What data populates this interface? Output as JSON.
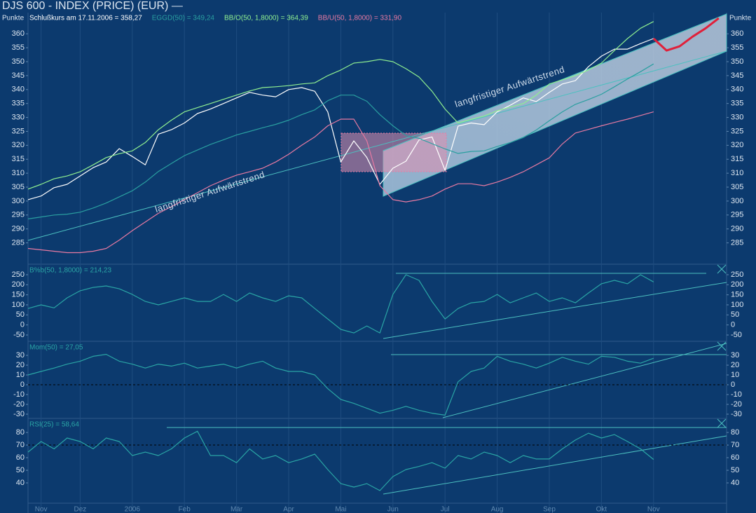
{
  "chart_data": [
    {
      "type": "line",
      "title": "DJS 600 - INDEX (PRICE) (EUR) —",
      "y_label": "Punkte",
      "ylim": [
        277.6,
        367.6
      ],
      "yticks": [
        285,
        290,
        295,
        300,
        305,
        310,
        315,
        320,
        325,
        330,
        335,
        340,
        345,
        350,
        355,
        360
      ],
      "annotations": [
        "langfristiger Aufwärtstrend",
        "langfristiger Aufwärtstrend"
      ],
      "series": [
        {
          "name": "Schlußkurs am 17.11.2006 = 358,27",
          "color": "#ffffff",
          "values": [
            300.5,
            301.8,
            304.8,
            306,
            309,
            312,
            314,
            318.8,
            316,
            313,
            324,
            325.6,
            328,
            331.4,
            333,
            335,
            337,
            339,
            338,
            337.4,
            340,
            340.7,
            339.4,
            332,
            314,
            321.6,
            315.6,
            306,
            311.8,
            314.3,
            321.9,
            323,
            311,
            326.9,
            328,
            327.4,
            332,
            334.4,
            337,
            335.7,
            339,
            342,
            343.2,
            348.2,
            352,
            354.5,
            354.5,
            356.5,
            358.3,
            null,
            null,
            null,
            null,
            null
          ]
        },
        {
          "name": "EGGD(50) = 349,24",
          "color": "#2a9fa0",
          "values": [
            293.6,
            294.3,
            295,
            295.3,
            296,
            297.5,
            299.3,
            301.5,
            303.7,
            306.8,
            310.6,
            313.5,
            316.3,
            318.3,
            320.3,
            322,
            323.7,
            325,
            326.3,
            327.5,
            329,
            331,
            332.7,
            336,
            338,
            338,
            335.8,
            331,
            327,
            323.5,
            322.5,
            320.6,
            318.7,
            317.1,
            317.8,
            318,
            319.6,
            321,
            322.8,
            325.5,
            328.8,
            332,
            334.7,
            336.4,
            338.3,
            341,
            343.8,
            346.4,
            349.2,
            null,
            null,
            null,
            null,
            null
          ]
        },
        {
          "name": "BB/O(50, 1,8000) = 364,39",
          "color": "#90f090",
          "values": [
            304.3,
            306,
            308,
            309,
            310.5,
            313,
            315.6,
            317,
            318,
            321,
            325.6,
            329,
            332,
            333.5,
            335,
            336.5,
            338,
            339.5,
            340.7,
            341,
            341.4,
            342,
            342.4,
            345,
            347,
            349.5,
            350,
            350.8,
            350,
            347.5,
            344.5,
            339.4,
            333,
            328,
            329.3,
            330.5,
            332.4,
            333.7,
            335,
            338,
            342,
            343.5,
            345,
            347,
            349.5,
            354,
            358.3,
            362,
            364.4,
            null,
            null,
            null,
            null,
            null
          ]
        },
        {
          "name": "BB/U(50, 1,8000) = 331,90",
          "color": "#e87aa2",
          "values": [
            283,
            282.5,
            282,
            281.5,
            281.5,
            282,
            283,
            286,
            289.4,
            292.5,
            295.6,
            298,
            300.5,
            303,
            305.5,
            307.5,
            309.3,
            310.5,
            311.8,
            314,
            316.8,
            320,
            323,
            327,
            329.4,
            329.4,
            321.6,
            305.5,
            300.5,
            299.7,
            300.5,
            301.8,
            304.3,
            306.2,
            306.2,
            305.5,
            306.8,
            308.5,
            310.5,
            313,
            315.5,
            320.5,
            324.4,
            325.7,
            327,
            328.2,
            329.4,
            330.7,
            332,
            null,
            null,
            null,
            null,
            null
          ]
        },
        {
          "color": "#e0203a",
          "values": [
            null,
            null,
            null,
            null,
            null,
            null,
            null,
            null,
            null,
            null,
            null,
            null,
            null,
            null,
            null,
            null,
            null,
            null,
            null,
            null,
            null,
            null,
            null,
            null,
            null,
            null,
            null,
            null,
            null,
            null,
            null,
            null,
            null,
            null,
            null,
            null,
            null,
            null,
            null,
            null,
            null,
            null,
            null,
            null,
            null,
            null,
            null,
            null,
            358.3,
            354,
            355.5,
            359,
            362,
            365.6
          ]
        }
      ]
    },
    {
      "type": "line",
      "ylim": [
        -81.4,
        298.8
      ],
      "yticks": [
        -50,
        0,
        50,
        100,
        150,
        200,
        250
      ],
      "series": [
        {
          "name": "B%b(50, 1,8000) = 214,23",
          "color": "#2aa5a5",
          "values": [
            82,
            100,
            85,
            135,
            170,
            187,
            194,
            180,
            152,
            117,
            100,
            117,
            135,
            117,
            117,
            152,
            117,
            159,
            135,
            117,
            145,
            135,
            82,
            30,
            -22,
            -40,
            -5,
            -40,
            152,
            250,
            222,
            117,
            30,
            82,
            110,
            117,
            152,
            110,
            135,
            159,
            117,
            135,
            110,
            159,
            205,
            222,
            205,
            250,
            214,
            null,
            null,
            null,
            null,
            null
          ]
        }
      ]
    },
    {
      "type": "line",
      "ylim": [
        -34.3,
        43.6
      ],
      "yticks": [
        -30,
        -20,
        -10,
        0,
        10,
        20,
        30
      ],
      "reference_lines": [
        0
      ],
      "series": [
        {
          "name": "Mom(50) = 27,05",
          "color": "#2aa5a5",
          "values": [
            10,
            13.6,
            17,
            21,
            24,
            29,
            31,
            24,
            21,
            17,
            21,
            19,
            22,
            17,
            19,
            21,
            17,
            21,
            24,
            17,
            13.6,
            13.6,
            10,
            -4,
            -15,
            -19,
            -24,
            -29,
            -26,
            -22,
            -26,
            -29,
            -31,
            3,
            13.6,
            17,
            29,
            24,
            21,
            17,
            22,
            28,
            24,
            21,
            29,
            28,
            24,
            22,
            27,
            null,
            null,
            null,
            null,
            null
          ]
        }
      ]
    },
    {
      "type": "line",
      "ylim": [
        23.9,
        90.6
      ],
      "yticks": [
        40,
        50,
        60,
        70,
        80
      ],
      "reference_lines": [
        70
      ],
      "categories": [
        null,
        "Nov",
        null,
        null,
        "Dez",
        null,
        null,
        null,
        "2006",
        null,
        null,
        null,
        "Feb",
        null,
        null,
        null,
        "Mär",
        null,
        null,
        null,
        "Apr",
        null,
        null,
        null,
        "Mai",
        null,
        null,
        null,
        "Jun",
        null,
        null,
        null,
        "Jul",
        null,
        null,
        null,
        "Aug",
        null,
        null,
        null,
        "Sep",
        null,
        null,
        null,
        "Okt",
        null,
        null,
        null,
        "Nov",
        null,
        null,
        null,
        null,
        null
      ],
      "series": [
        {
          "name": "RSI(25) = 58,64",
          "color": "#2aa5a5",
          "values": [
            64.4,
            72.8,
            67,
            75.6,
            72.8,
            67,
            75.6,
            72.8,
            61.7,
            64.4,
            61.7,
            67,
            75.6,
            81,
            61.7,
            61.7,
            56,
            67,
            59,
            61.7,
            56,
            59,
            62.8,
            50.6,
            39.4,
            36.7,
            39.4,
            33.9,
            45,
            50.6,
            53,
            56,
            51.7,
            61.7,
            59,
            64.4,
            61.7,
            56,
            61.7,
            59,
            59,
            67,
            74,
            79.4,
            75.6,
            78.3,
            72.8,
            67,
            58.6,
            null,
            null,
            null,
            null,
            null
          ]
        }
      ]
    }
  ]
}
